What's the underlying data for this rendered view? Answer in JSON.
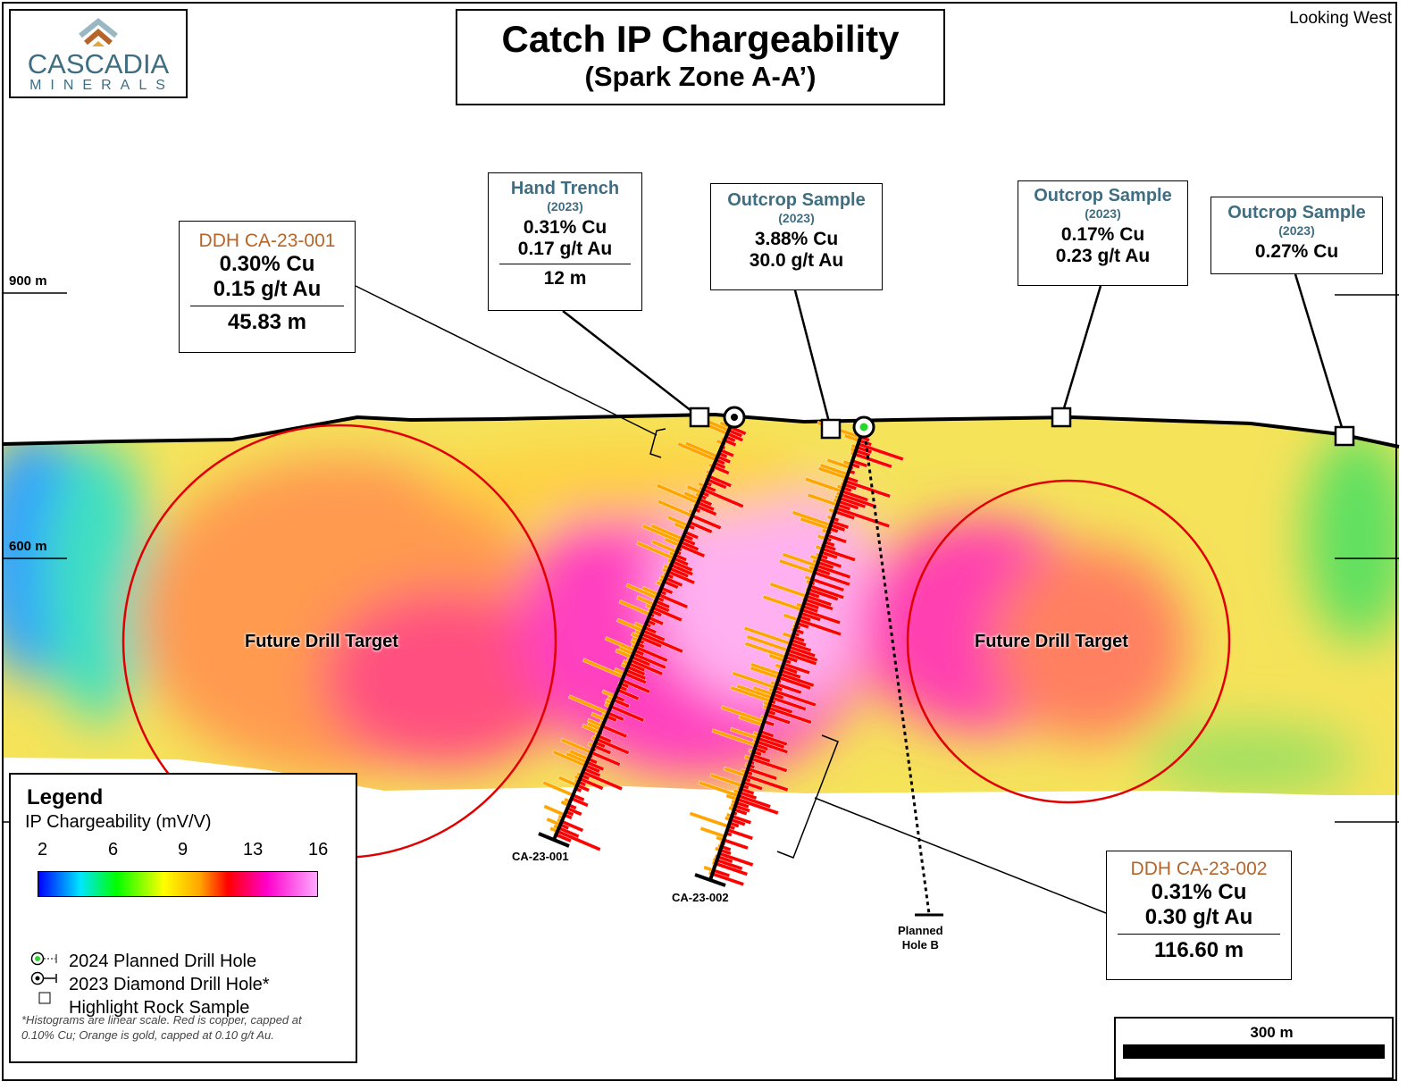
{
  "logo": {
    "line1": "CASCADIA",
    "line2": "MINERALS"
  },
  "title": {
    "main": "Catch IP Chargeability",
    "sub": "(Spark Zone A-A’)"
  },
  "view_label": "Looking West",
  "elevations": [
    "900 m",
    "600 m"
  ],
  "targets": [
    "Future Drill Target",
    "Future Drill Target"
  ],
  "drill_holes": [
    "CA-23-001",
    "CA-23-002"
  ],
  "planned_hole": {
    "line1": "Planned",
    "line2": "Hole B"
  },
  "callouts": {
    "ddh1": {
      "title": "DDH CA-23-001",
      "cu": "0.30% Cu",
      "au": "0.15 g/t Au",
      "length": "45.83 m"
    },
    "trench": {
      "title": "Hand Trench",
      "year": "(2023)",
      "cu": "0.31% Cu",
      "au": "0.17 g/t Au",
      "length": "12 m"
    },
    "outcrop1": {
      "title": "Outcrop Sample",
      "year": "(2023)",
      "cu": "3.88% Cu",
      "au": "30.0 g/t Au"
    },
    "outcrop2": {
      "title": "Outcrop Sample",
      "year": "(2023)",
      "cu": "0.17% Cu",
      "au": "0.23 g/t Au"
    },
    "outcrop3": {
      "title": "Outcrop Sample",
      "year": "(2023)",
      "cu": "0.27% Cu"
    },
    "ddh2": {
      "title": "DDH CA-23-002",
      "cu": "0.31% Cu",
      "au": "0.30 g/t Au",
      "length": "116.60 m"
    }
  },
  "legend": {
    "title": "Legend",
    "scale_title": "IP Chargeability (mV/V)",
    "ticks": [
      "2",
      "6",
      "9",
      "13",
      "16"
    ],
    "items": [
      "2024 Planned Drill Hole",
      "2023 Diamond Drill Hole*",
      "Highlight Rock Sample"
    ],
    "note": "*Histograms are linear scale. Red is copper, capped at 0.10% Cu; Orange is gold, capped at 0.10 g/t Au."
  },
  "scale_bar": "300 m",
  "colors": {
    "copper": "#ff0000",
    "gold": "#ffa500",
    "target": "#e00000",
    "callout_title": "#3f6e82",
    "ddh_title": "#b5652a"
  }
}
